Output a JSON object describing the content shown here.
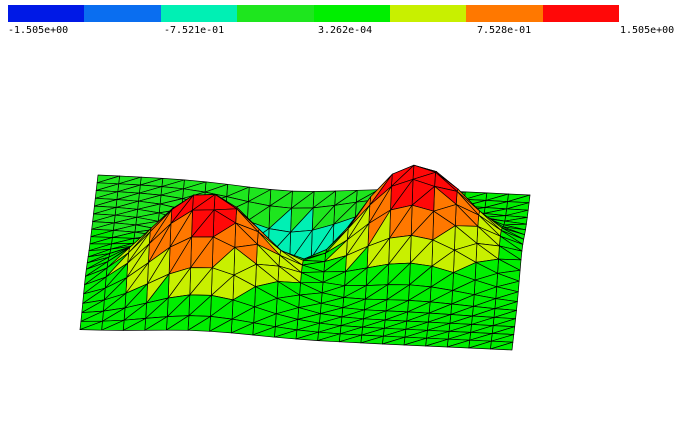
{
  "colorbar": {
    "colors": [
      "#0019e6",
      "#0a6ef0",
      "#00f0b4",
      "#1ee61e",
      "#00ef00",
      "#c8f000",
      "#ff7800",
      "#ff0808"
    ],
    "labels": [
      "-1.505e+00",
      "-7.521e-01",
      "3.262e-04",
      "7.528e-01",
      "1.505e+00"
    ],
    "min": -1.505,
    "max": 1.505
  },
  "surface": {
    "colormap": "rainbow-8-band",
    "mesh_color": "#000000"
  }
}
